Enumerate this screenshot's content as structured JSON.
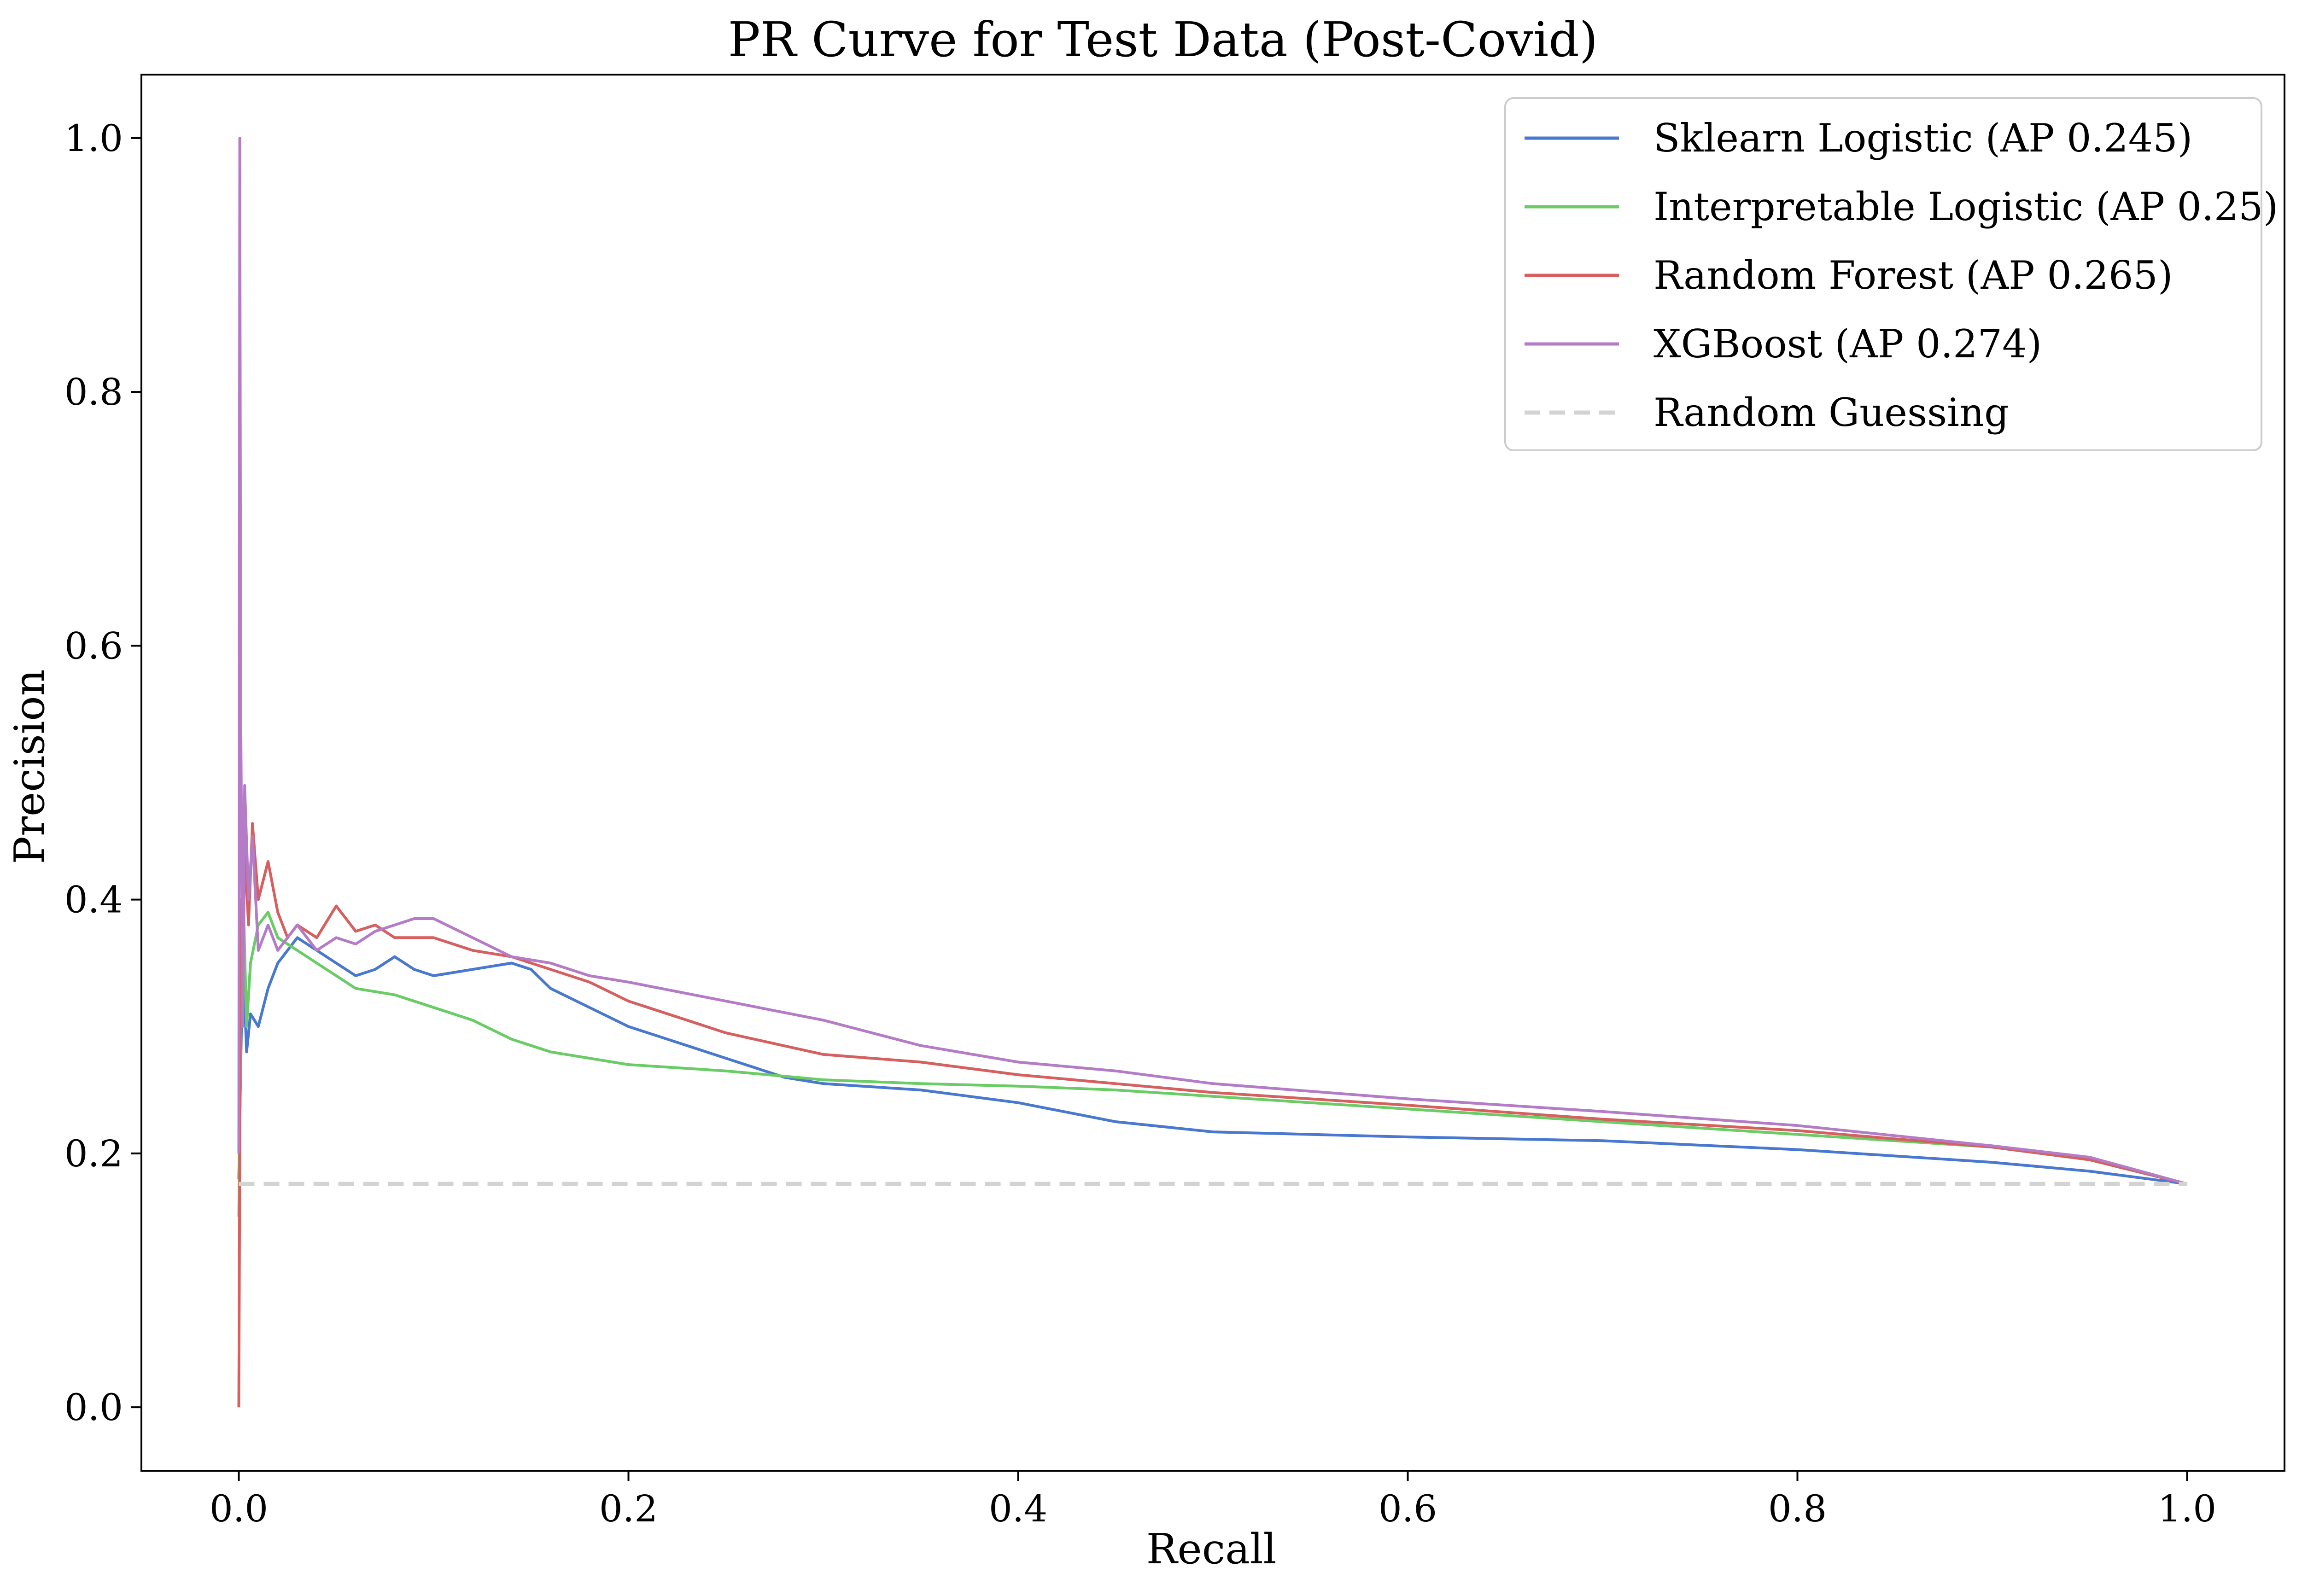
{
  "chart_data": {
    "type": "line",
    "title": "PR Curve for Test Data (Post-Covid)",
    "xlabel": "Recall",
    "ylabel": "Precision",
    "xlim": [
      -0.05,
      1.05
    ],
    "ylim": [
      -0.05,
      1.05
    ],
    "xticks": [
      0.0,
      0.2,
      0.4,
      0.6,
      0.8,
      1.0
    ],
    "yticks": [
      0.0,
      0.2,
      0.4,
      0.6,
      0.8,
      1.0
    ],
    "xtick_labels": [
      "0.0",
      "0.2",
      "0.4",
      "0.6",
      "0.8",
      "1.0"
    ],
    "ytick_labels": [
      "0.0",
      "0.2",
      "0.4",
      "0.6",
      "0.8",
      "1.0"
    ],
    "grid": false,
    "legend_position": "top-right",
    "series": [
      {
        "name": "Sklearn Logistic (AP 0.245)",
        "color": "#4878cf",
        "x": [
          0.0,
          0.002,
          0.004,
          0.006,
          0.01,
          0.015,
          0.02,
          0.025,
          0.03,
          0.04,
          0.05,
          0.06,
          0.07,
          0.08,
          0.09,
          0.1,
          0.12,
          0.14,
          0.15,
          0.16,
          0.18,
          0.2,
          0.22,
          0.25,
          0.28,
          0.3,
          0.35,
          0.4,
          0.45,
          0.5,
          0.6,
          0.7,
          0.8,
          0.9,
          0.95,
          1.0
        ],
        "y": [
          0.18,
          0.36,
          0.28,
          0.31,
          0.3,
          0.33,
          0.35,
          0.36,
          0.37,
          0.36,
          0.35,
          0.34,
          0.345,
          0.355,
          0.345,
          0.34,
          0.345,
          0.35,
          0.345,
          0.33,
          0.315,
          0.3,
          0.29,
          0.275,
          0.26,
          0.255,
          0.25,
          0.24,
          0.225,
          0.217,
          0.213,
          0.21,
          0.203,
          0.193,
          0.186,
          0.176
        ]
      },
      {
        "name": "Interpretable Logistic (AP 0.25)",
        "color": "#6acc65",
        "x": [
          0.0,
          0.002,
          0.004,
          0.006,
          0.01,
          0.015,
          0.02,
          0.03,
          0.04,
          0.05,
          0.06,
          0.08,
          0.1,
          0.12,
          0.14,
          0.16,
          0.18,
          0.2,
          0.25,
          0.3,
          0.35,
          0.4,
          0.45,
          0.5,
          0.6,
          0.7,
          0.8,
          0.9,
          0.95,
          1.0
        ],
        "y": [
          0.15,
          0.42,
          0.3,
          0.35,
          0.38,
          0.39,
          0.37,
          0.36,
          0.35,
          0.34,
          0.33,
          0.325,
          0.315,
          0.305,
          0.29,
          0.28,
          0.275,
          0.27,
          0.265,
          0.258,
          0.255,
          0.253,
          0.25,
          0.245,
          0.235,
          0.225,
          0.215,
          0.205,
          0.195,
          0.176
        ]
      },
      {
        "name": "Random Forest (AP 0.265)",
        "color": "#d65f5f",
        "x": [
          0.0,
          0.001,
          0.002,
          0.003,
          0.005,
          0.007,
          0.01,
          0.015,
          0.02,
          0.025,
          0.03,
          0.04,
          0.05,
          0.06,
          0.07,
          0.08,
          0.1,
          0.12,
          0.14,
          0.16,
          0.18,
          0.2,
          0.25,
          0.3,
          0.35,
          0.4,
          0.45,
          0.5,
          0.6,
          0.7,
          0.8,
          0.9,
          0.95,
          1.0
        ],
        "y": [
          0.0,
          0.4,
          0.33,
          0.44,
          0.38,
          0.46,
          0.4,
          0.43,
          0.39,
          0.37,
          0.38,
          0.37,
          0.395,
          0.375,
          0.38,
          0.37,
          0.37,
          0.36,
          0.355,
          0.345,
          0.335,
          0.32,
          0.295,
          0.278,
          0.272,
          0.262,
          0.255,
          0.248,
          0.238,
          0.227,
          0.218,
          0.205,
          0.195,
          0.176
        ]
      },
      {
        "name": "XGBoost (AP 0.274)",
        "color": "#b47cc7",
        "x": [
          0.0,
          0.0005,
          0.001,
          0.002,
          0.003,
          0.005,
          0.007,
          0.01,
          0.015,
          0.02,
          0.03,
          0.04,
          0.05,
          0.06,
          0.07,
          0.08,
          0.09,
          0.1,
          0.12,
          0.14,
          0.16,
          0.18,
          0.2,
          0.25,
          0.3,
          0.35,
          0.4,
          0.45,
          0.5,
          0.6,
          0.7,
          0.8,
          0.9,
          0.95,
          1.0
        ],
        "y": [
          0.2,
          1.0,
          0.55,
          0.3,
          0.49,
          0.4,
          0.45,
          0.36,
          0.38,
          0.36,
          0.38,
          0.36,
          0.37,
          0.365,
          0.375,
          0.38,
          0.385,
          0.385,
          0.37,
          0.355,
          0.35,
          0.34,
          0.335,
          0.32,
          0.305,
          0.285,
          0.272,
          0.265,
          0.255,
          0.243,
          0.233,
          0.222,
          0.206,
          0.197,
          0.176
        ]
      },
      {
        "name": "Random Guessing",
        "color": "#d3d3d3",
        "dashed": true,
        "x": [
          0.0,
          1.0
        ],
        "y": [
          0.176,
          0.176
        ]
      }
    ]
  }
}
